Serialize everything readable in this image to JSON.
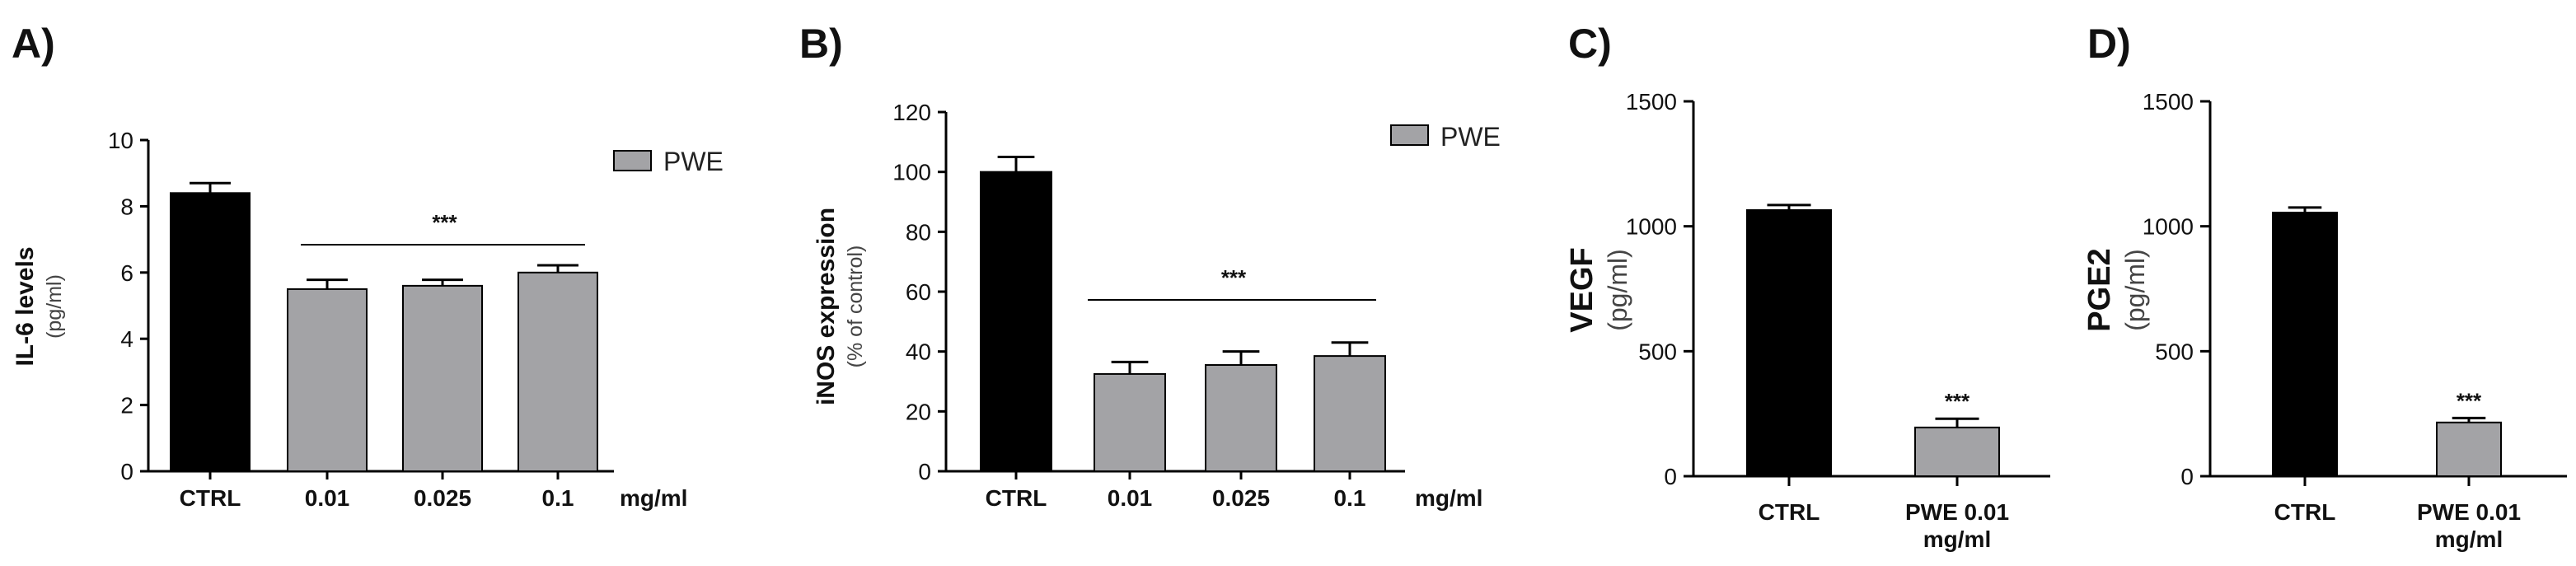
{
  "colors": {
    "ctrl": "#000000",
    "treated": "#a3a3a6",
    "axis": "#000000"
  },
  "chart_data": [
    {
      "id": "A",
      "type": "bar",
      "panel_label": "A)",
      "ylabel": "IL-6 levels",
      "ylabel_unit": "(pg/ml)",
      "categories": [
        "CTRL",
        "0.01",
        "0.025",
        "0.1"
      ],
      "unit_label": "mg/ml",
      "values": [
        8.4,
        5.5,
        5.6,
        6.0
      ],
      "errors": [
        0.3,
        0.28,
        0.18,
        0.22
      ],
      "bar_colors": [
        "ctrl",
        "treated",
        "treated",
        "treated"
      ],
      "ylim": [
        0,
        10
      ],
      "yticks": [
        0,
        2,
        4,
        6,
        8,
        10
      ],
      "legend": "PWE",
      "significance": "***"
    },
    {
      "id": "B",
      "type": "bar",
      "panel_label": "B)",
      "ylabel": "iNOS expression",
      "ylabel_unit": "(% of control)",
      "categories": [
        "CTRL",
        "0.01",
        "0.025",
        "0.1"
      ],
      "unit_label": "mg/ml",
      "values": [
        100,
        32.5,
        35.5,
        38.5
      ],
      "errors": [
        5,
        4,
        4.5,
        4.5
      ],
      "bar_colors": [
        "ctrl",
        "treated",
        "treated",
        "treated"
      ],
      "ylim": [
        0,
        120
      ],
      "yticks": [
        0,
        20,
        40,
        60,
        80,
        100,
        120
      ],
      "legend": "PWE",
      "significance": "***"
    },
    {
      "id": "C",
      "type": "bar",
      "panel_label": "C)",
      "ylabel": "VEGF",
      "ylabel_unit": "(pg/ml)",
      "categories": [
        "CTRL",
        "PWE 0.01"
      ],
      "category_sublabels": [
        "",
        "mg/ml"
      ],
      "values": [
        1065,
        195
      ],
      "errors": [
        20,
        35
      ],
      "bar_colors": [
        "ctrl",
        "treated"
      ],
      "ylim": [
        0,
        1500
      ],
      "yticks": [
        0,
        500,
        1000,
        1500
      ],
      "significance": "***"
    },
    {
      "id": "D",
      "type": "bar",
      "panel_label": "D)",
      "ylabel": "PGE2",
      "ylabel_unit": "(pg/ml)",
      "categories": [
        "CTRL",
        "PWE 0.01"
      ],
      "category_sublabels": [
        "",
        "mg/ml"
      ],
      "values": [
        1055,
        215
      ],
      "errors": [
        20,
        18
      ],
      "bar_colors": [
        "ctrl",
        "treated"
      ],
      "ylim": [
        0,
        1500
      ],
      "yticks": [
        0,
        500,
        1000,
        1500
      ],
      "significance": "***"
    }
  ]
}
